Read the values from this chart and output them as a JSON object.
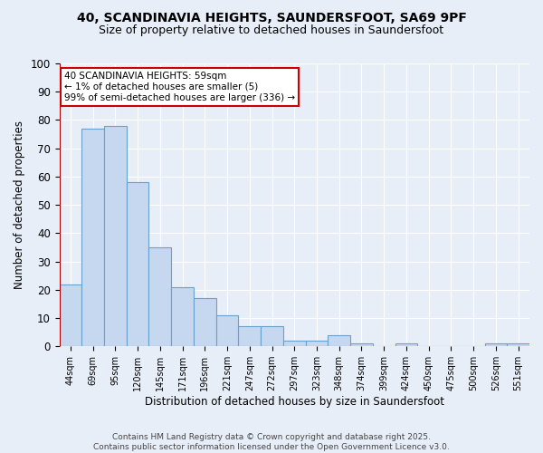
{
  "title1": "40, SCANDINAVIA HEIGHTS, SAUNDERSFOOT, SA69 9PF",
  "title2": "Size of property relative to detached houses in Saundersfoot",
  "xlabel": "Distribution of detached houses by size in Saundersfoot",
  "ylabel": "Number of detached properties",
  "categories": [
    "44sqm",
    "69sqm",
    "95sqm",
    "120sqm",
    "145sqm",
    "171sqm",
    "196sqm",
    "221sqm",
    "247sqm",
    "272sqm",
    "297sqm",
    "323sqm",
    "348sqm",
    "374sqm",
    "399sqm",
    "424sqm",
    "450sqm",
    "475sqm",
    "500sqm",
    "526sqm",
    "551sqm"
  ],
  "values": [
    22,
    77,
    78,
    58,
    35,
    21,
    17,
    11,
    7,
    7,
    2,
    2,
    4,
    1,
    0,
    1,
    0,
    0,
    0,
    1,
    1
  ],
  "bar_color": "#c5d8ef",
  "bar_edge_color": "#6aa0cc",
  "red_line_color": "#aa0000",
  "annotation_text": "40 SCANDINAVIA HEIGHTS: 59sqm\n← 1% of detached houses are smaller (5)\n99% of semi-detached houses are larger (336) →",
  "annotation_box_color": "#ffffff",
  "annotation_box_edge_color": "#cc0000",
  "ylim": [
    0,
    100
  ],
  "yticks": [
    0,
    10,
    20,
    30,
    40,
    50,
    60,
    70,
    80,
    90,
    100
  ],
  "footnote": "Contains HM Land Registry data © Crown copyright and database right 2025.\nContains public sector information licensed under the Open Government Licence v3.0.",
  "background_color": "#e8eef8",
  "axes_bg_color": "#e8eef8",
  "grid_color": "#ffffff"
}
